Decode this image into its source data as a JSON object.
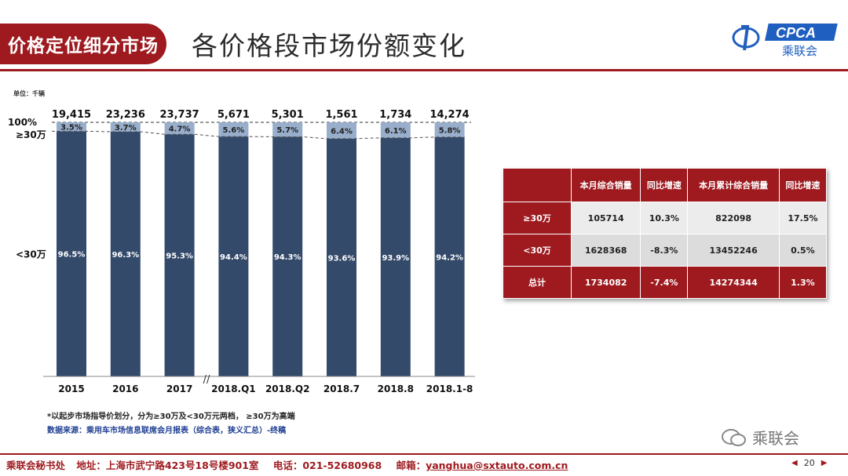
{
  "header": {
    "tag": "价格定位细分市场",
    "title": "各价格段市场份额变化",
    "logo_text": "CPCA",
    "logo_sub": "乘联会"
  },
  "colors": {
    "brand": "#9e1a1f",
    "bar_low": "#344a6b",
    "bar_high": "#98aecb"
  },
  "chart_data": {
    "type": "bar",
    "unit_label": "单位：千辆",
    "categories": [
      "2015",
      "2016",
      "2017",
      "2018.Q1",
      "2018.Q2",
      "2018.7",
      "2018.8",
      "2018.1-8"
    ],
    "totals": [
      "19,415",
      "23,236",
      "23,737",
      "5,671",
      "5,301",
      "1,561",
      "1,734",
      "14,274"
    ],
    "series": [
      {
        "name": "<30万",
        "values": [
          96.5,
          96.3,
          95.3,
          94.4,
          94.3,
          93.6,
          93.9,
          94.2
        ]
      },
      {
        "name": "≥30万",
        "values": [
          3.5,
          3.7,
          4.7,
          5.6,
          5.7,
          6.4,
          6.1,
          5.8
        ]
      }
    ],
    "y_labels": [
      "100%",
      "≥30万",
      "<30万"
    ],
    "ylim": [
      0,
      100
    ],
    "break_mark": "//"
  },
  "table": {
    "headers": [
      "",
      "本月综合销量",
      "同比增速",
      "本月累计综合销量",
      "同比增速"
    ],
    "rows": [
      {
        "label": "≥30万",
        "cells": [
          "105714",
          "10.3%",
          "822098",
          "17.5%"
        ]
      },
      {
        "label": "<30万",
        "cells": [
          "1628368",
          "-8.3%",
          "13452246",
          "0.5%"
        ]
      },
      {
        "label": "总计",
        "cells": [
          "1734082",
          "-7.4%",
          "14274344",
          "1.3%"
        ]
      }
    ]
  },
  "notes": {
    "footnote": "*以起步市场指导价划分，分为≥30万及<30万元两档，   ≥30万为高端",
    "source": "数据来源：乘用车市场信息联席会月报表（综合表，狭义汇总）-终稿"
  },
  "watermark": "乘联会",
  "footer": {
    "office": "乘联会秘书处",
    "address": "地址：上海市武宁路423号18号楼901室",
    "phone": "电话：021-52680968",
    "email_label": "邮箱：",
    "email": "yanghua@sxtauto.com.cn",
    "page": "20"
  }
}
